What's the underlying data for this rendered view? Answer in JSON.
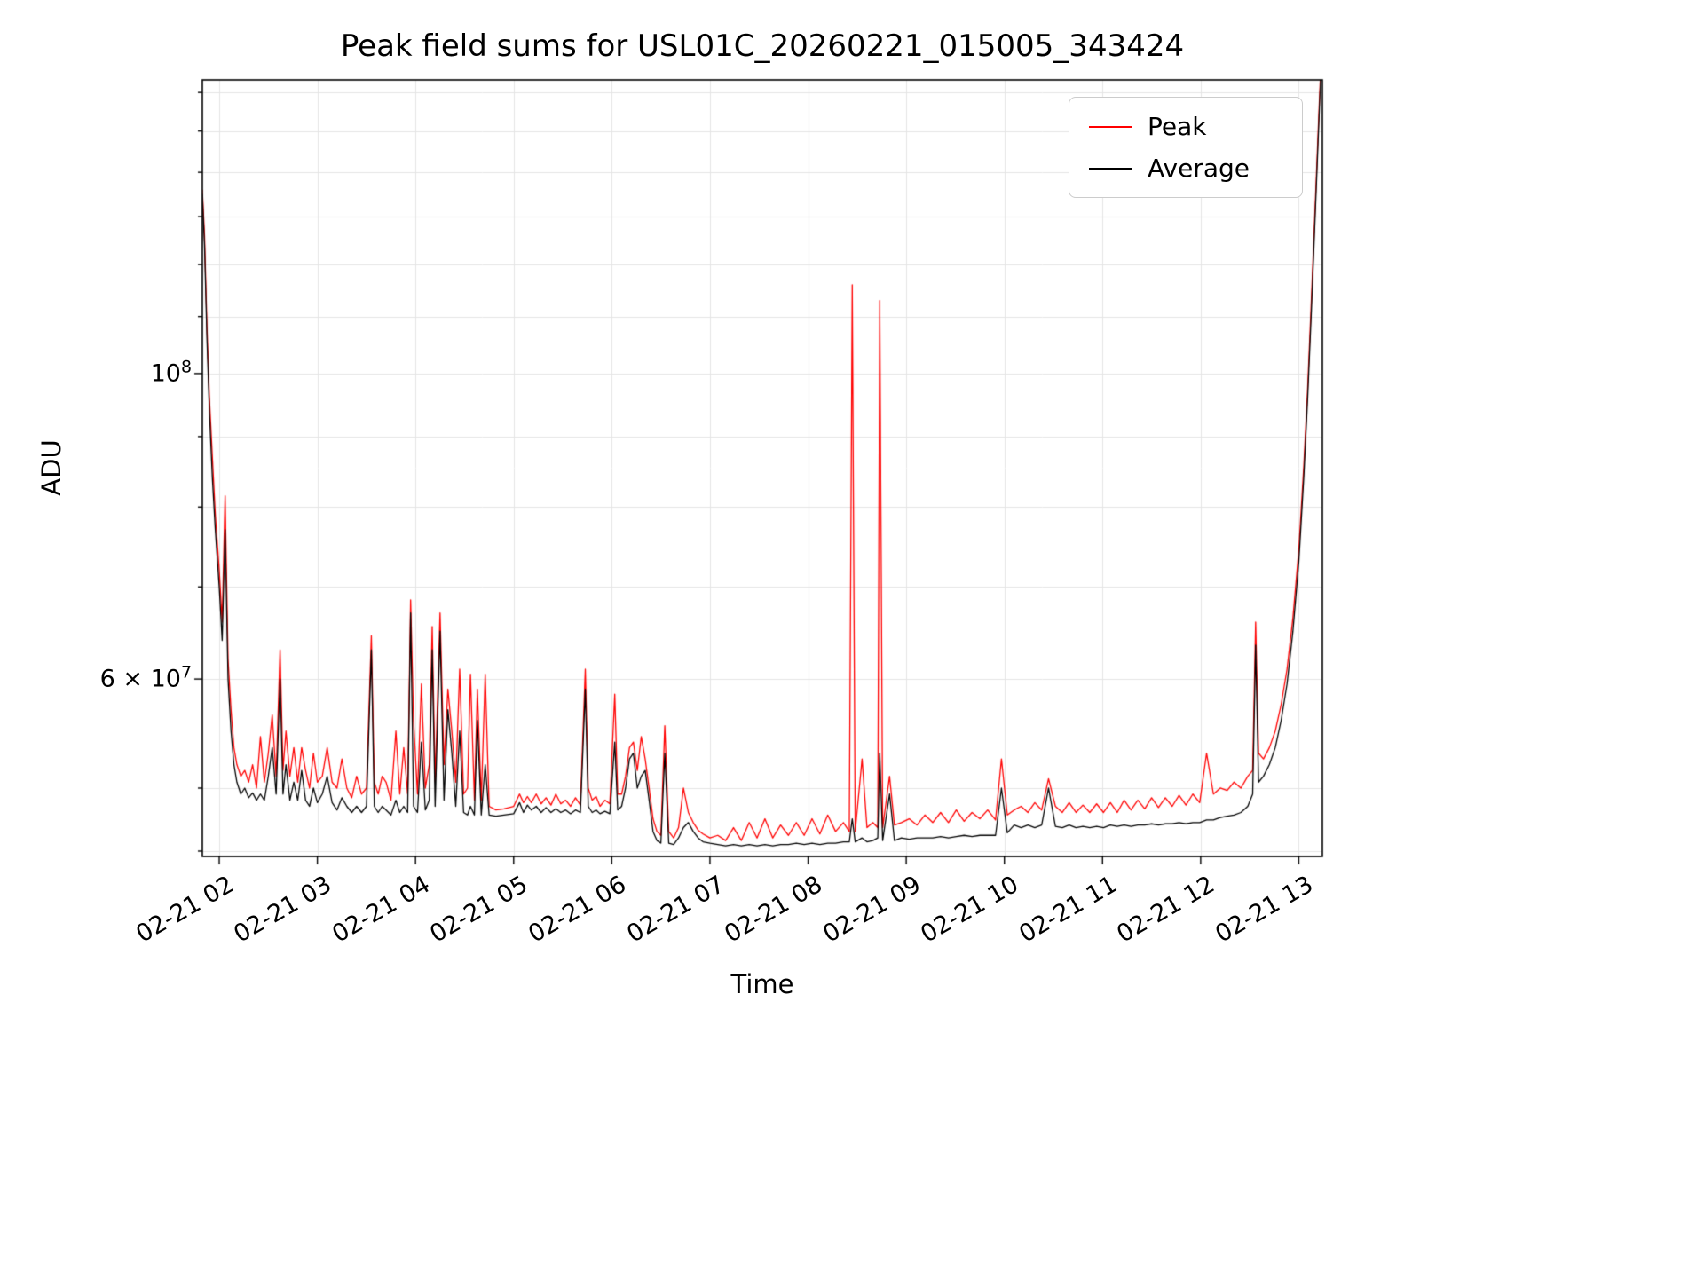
{
  "chart_data": {
    "type": "line",
    "title": "Peak field sums for USL01C_20260221_015005_343424",
    "xlabel": "Time",
    "ylabel": "ADU",
    "yscale": "log",
    "grid": true,
    "grid_color": "#e5e5e5",
    "legend_position": "upper right",
    "xlim": [
      1.828,
      13.24
    ],
    "ylim": [
      44600000.0,
      163400000.0
    ],
    "x_ticks": [
      {
        "value": 2,
        "label": "02-21 02"
      },
      {
        "value": 3,
        "label": "02-21 03"
      },
      {
        "value": 4,
        "label": "02-21 04"
      },
      {
        "value": 5,
        "label": "02-21 05"
      },
      {
        "value": 6,
        "label": "02-21 06"
      },
      {
        "value": 7,
        "label": "02-21 07"
      },
      {
        "value": 8,
        "label": "02-21 08"
      },
      {
        "value": 9,
        "label": "02-21 09"
      },
      {
        "value": 10,
        "label": "02-21 10"
      },
      {
        "value": 11,
        "label": "02-21 11"
      },
      {
        "value": 12,
        "label": "02-21 12"
      },
      {
        "value": 13,
        "label": "02-21 13"
      }
    ],
    "y_ticks_major": [
      {
        "value": 100000000.0,
        "label": "10^8"
      },
      {
        "value": 60000000.0,
        "label": "6 × 10^7"
      }
    ],
    "y_grid_values": [
      45000000.0,
      50000000.0,
      60000000.0,
      70000000.0,
      80000000.0,
      90000000.0,
      100000000.0,
      110000000.0,
      120000000.0,
      130000000.0,
      140000000.0,
      150000000.0,
      160000000.0
    ],
    "y_scale_factor": 10000000.0,
    "x": [
      1.828,
      1.85,
      1.875,
      1.9,
      1.93,
      1.96,
      2.0,
      2.03,
      2.06,
      2.09,
      2.12,
      2.15,
      2.18,
      2.22,
      2.26,
      2.3,
      2.34,
      2.38,
      2.42,
      2.46,
      2.5,
      2.54,
      2.58,
      2.62,
      2.65,
      2.68,
      2.72,
      2.76,
      2.8,
      2.84,
      2.88,
      2.92,
      2.96,
      3.0,
      3.05,
      3.1,
      3.15,
      3.2,
      3.25,
      3.3,
      3.35,
      3.4,
      3.45,
      3.5,
      3.55,
      3.58,
      3.62,
      3.66,
      3.7,
      3.75,
      3.8,
      3.84,
      3.88,
      3.92,
      3.95,
      3.98,
      4.02,
      4.06,
      4.1,
      4.14,
      4.17,
      4.2,
      4.25,
      4.29,
      4.33,
      4.37,
      4.41,
      4.45,
      4.49,
      4.53,
      4.56,
      4.6,
      4.63,
      4.67,
      4.71,
      4.75,
      4.82,
      4.9,
      5.0,
      5.06,
      5.1,
      5.14,
      5.18,
      5.23,
      5.28,
      5.33,
      5.38,
      5.43,
      5.48,
      5.53,
      5.58,
      5.63,
      5.68,
      5.73,
      5.76,
      5.8,
      5.84,
      5.88,
      5.93,
      5.98,
      6.03,
      6.06,
      6.1,
      6.14,
      6.18,
      6.22,
      6.26,
      6.3,
      6.34,
      6.38,
      6.42,
      6.46,
      6.5,
      6.54,
      6.58,
      6.63,
      6.68,
      6.73,
      6.78,
      6.83,
      6.88,
      6.93,
      7.0,
      7.08,
      7.16,
      7.24,
      7.32,
      7.4,
      7.48,
      7.56,
      7.64,
      7.72,
      7.8,
      7.88,
      7.96,
      8.04,
      8.12,
      8.2,
      8.28,
      8.36,
      8.42,
      8.45,
      8.48,
      8.55,
      8.6,
      8.66,
      8.71,
      8.73,
      8.76,
      8.83,
      8.88,
      8.95,
      9.03,
      9.11,
      9.19,
      9.27,
      9.35,
      9.43,
      9.51,
      9.59,
      9.67,
      9.75,
      9.83,
      9.91,
      9.97,
      10.03,
      10.1,
      10.17,
      10.24,
      10.31,
      10.38,
      10.45,
      10.52,
      10.59,
      10.66,
      10.73,
      10.8,
      10.87,
      10.94,
      11.01,
      11.08,
      11.15,
      11.22,
      11.29,
      11.36,
      11.43,
      11.5,
      11.57,
      11.64,
      11.71,
      11.78,
      11.85,
      11.92,
      11.99,
      12.06,
      12.13,
      12.2,
      12.27,
      12.34,
      12.41,
      12.48,
      12.53,
      12.56,
      12.59,
      12.64,
      12.7,
      12.76,
      12.82,
      12.88,
      12.94,
      13.0,
      13.05,
      13.09,
      13.13,
      13.17,
      13.21,
      13.24
    ],
    "series": [
      {
        "name": "Peak",
        "color": "#ff0000",
        "y": [
          13.6,
          12.6,
          10.8,
          9.6,
          8.7,
          7.9,
          7.2,
          6.6,
          8.15,
          6.2,
          5.7,
          5.35,
          5.2,
          5.1,
          5.15,
          5.05,
          5.2,
          5.0,
          5.45,
          5.05,
          5.3,
          5.65,
          5.1,
          6.3,
          5.15,
          5.5,
          5.1,
          5.35,
          5.05,
          5.35,
          5.15,
          5.0,
          5.3,
          5.05,
          5.1,
          5.35,
          5.05,
          5.0,
          5.25,
          5.0,
          4.92,
          5.1,
          4.95,
          5.0,
          6.45,
          5.05,
          4.95,
          5.1,
          5.05,
          4.9,
          5.5,
          4.95,
          5.35,
          4.95,
          6.85,
          5.6,
          4.95,
          5.95,
          5.0,
          5.2,
          6.55,
          5.05,
          6.7,
          5.2,
          5.9,
          5.5,
          5.05,
          6.1,
          4.95,
          5.0,
          6.05,
          4.9,
          5.9,
          4.9,
          6.05,
          4.85,
          4.82,
          4.83,
          4.85,
          4.95,
          4.88,
          4.93,
          4.88,
          4.95,
          4.87,
          4.92,
          4.86,
          4.95,
          4.87,
          4.9,
          4.85,
          4.92,
          4.86,
          6.1,
          5.0,
          4.9,
          4.93,
          4.85,
          4.9,
          4.87,
          5.85,
          4.95,
          4.95,
          5.1,
          5.35,
          5.4,
          5.15,
          5.45,
          5.25,
          5.0,
          4.75,
          4.65,
          4.62,
          5.55,
          4.65,
          4.6,
          4.68,
          5.0,
          4.8,
          4.72,
          4.66,
          4.63,
          4.6,
          4.62,
          4.58,
          4.68,
          4.58,
          4.72,
          4.6,
          4.75,
          4.6,
          4.7,
          4.62,
          4.72,
          4.62,
          4.75,
          4.63,
          4.78,
          4.65,
          4.72,
          4.65,
          11.6,
          4.65,
          5.25,
          4.68,
          4.72,
          4.68,
          11.3,
          4.68,
          5.1,
          4.7,
          4.72,
          4.75,
          4.7,
          4.78,
          4.72,
          4.8,
          4.72,
          4.82,
          4.73,
          4.8,
          4.75,
          4.82,
          4.74,
          5.25,
          4.78,
          4.82,
          4.85,
          4.8,
          4.88,
          4.82,
          5.08,
          4.85,
          4.8,
          4.88,
          4.8,
          4.86,
          4.8,
          4.87,
          4.8,
          4.88,
          4.8,
          4.9,
          4.82,
          4.9,
          4.83,
          4.92,
          4.84,
          4.92,
          4.85,
          4.94,
          4.86,
          4.95,
          4.88,
          5.3,
          4.95,
          5.0,
          4.98,
          5.05,
          5.0,
          5.1,
          5.15,
          6.6,
          5.3,
          5.25,
          5.35,
          5.5,
          5.75,
          6.1,
          6.65,
          7.45,
          8.55,
          9.75,
          11.4,
          13.4,
          15.8,
          17.7
        ]
      },
      {
        "name": "Average",
        "color": "#000000",
        "y": [
          13.5,
          12.4,
          10.6,
          9.4,
          8.4,
          7.7,
          7.0,
          6.4,
          7.7,
          6.0,
          5.5,
          5.2,
          5.05,
          4.95,
          5.0,
          4.92,
          4.96,
          4.9,
          4.95,
          4.9,
          5.1,
          5.35,
          4.95,
          6.0,
          4.95,
          5.2,
          4.9,
          5.05,
          4.9,
          5.15,
          4.9,
          4.85,
          5.0,
          4.88,
          4.95,
          5.1,
          4.88,
          4.82,
          4.92,
          4.85,
          4.8,
          4.85,
          4.8,
          4.85,
          6.3,
          4.85,
          4.8,
          4.85,
          4.82,
          4.78,
          4.9,
          4.8,
          4.85,
          4.8,
          6.7,
          4.85,
          4.8,
          5.4,
          4.82,
          4.9,
          6.3,
          4.85,
          6.5,
          4.9,
          5.7,
          5.3,
          4.85,
          5.5,
          4.8,
          4.78,
          4.85,
          4.78,
          5.6,
          4.78,
          5.2,
          4.78,
          4.77,
          4.78,
          4.79,
          4.88,
          4.8,
          4.86,
          4.82,
          4.85,
          4.8,
          4.84,
          4.8,
          4.83,
          4.8,
          4.82,
          4.79,
          4.82,
          4.8,
          5.9,
          4.85,
          4.8,
          4.82,
          4.79,
          4.81,
          4.79,
          5.4,
          4.82,
          4.85,
          5.0,
          5.25,
          5.3,
          5.0,
          5.1,
          5.15,
          4.9,
          4.65,
          4.58,
          4.56,
          5.3,
          4.56,
          4.55,
          4.6,
          4.68,
          4.72,
          4.65,
          4.6,
          4.57,
          4.56,
          4.55,
          4.54,
          4.55,
          4.54,
          4.55,
          4.54,
          4.55,
          4.54,
          4.55,
          4.55,
          4.56,
          4.55,
          4.56,
          4.55,
          4.56,
          4.56,
          4.57,
          4.57,
          4.75,
          4.57,
          4.6,
          4.57,
          4.58,
          4.6,
          5.3,
          4.58,
          4.95,
          4.58,
          4.6,
          4.59,
          4.6,
          4.6,
          4.6,
          4.61,
          4.6,
          4.61,
          4.62,
          4.61,
          4.62,
          4.62,
          4.62,
          5.0,
          4.64,
          4.7,
          4.68,
          4.7,
          4.68,
          4.7,
          5.0,
          4.69,
          4.68,
          4.7,
          4.68,
          4.69,
          4.68,
          4.69,
          4.68,
          4.7,
          4.69,
          4.7,
          4.69,
          4.7,
          4.7,
          4.71,
          4.7,
          4.71,
          4.71,
          4.72,
          4.71,
          4.72,
          4.72,
          4.74,
          4.74,
          4.76,
          4.77,
          4.78,
          4.8,
          4.85,
          4.95,
          6.35,
          5.05,
          5.1,
          5.2,
          5.35,
          5.6,
          5.95,
          6.5,
          7.3,
          8.4,
          9.6,
          11.2,
          13.2,
          15.6,
          17.5
        ]
      }
    ]
  }
}
